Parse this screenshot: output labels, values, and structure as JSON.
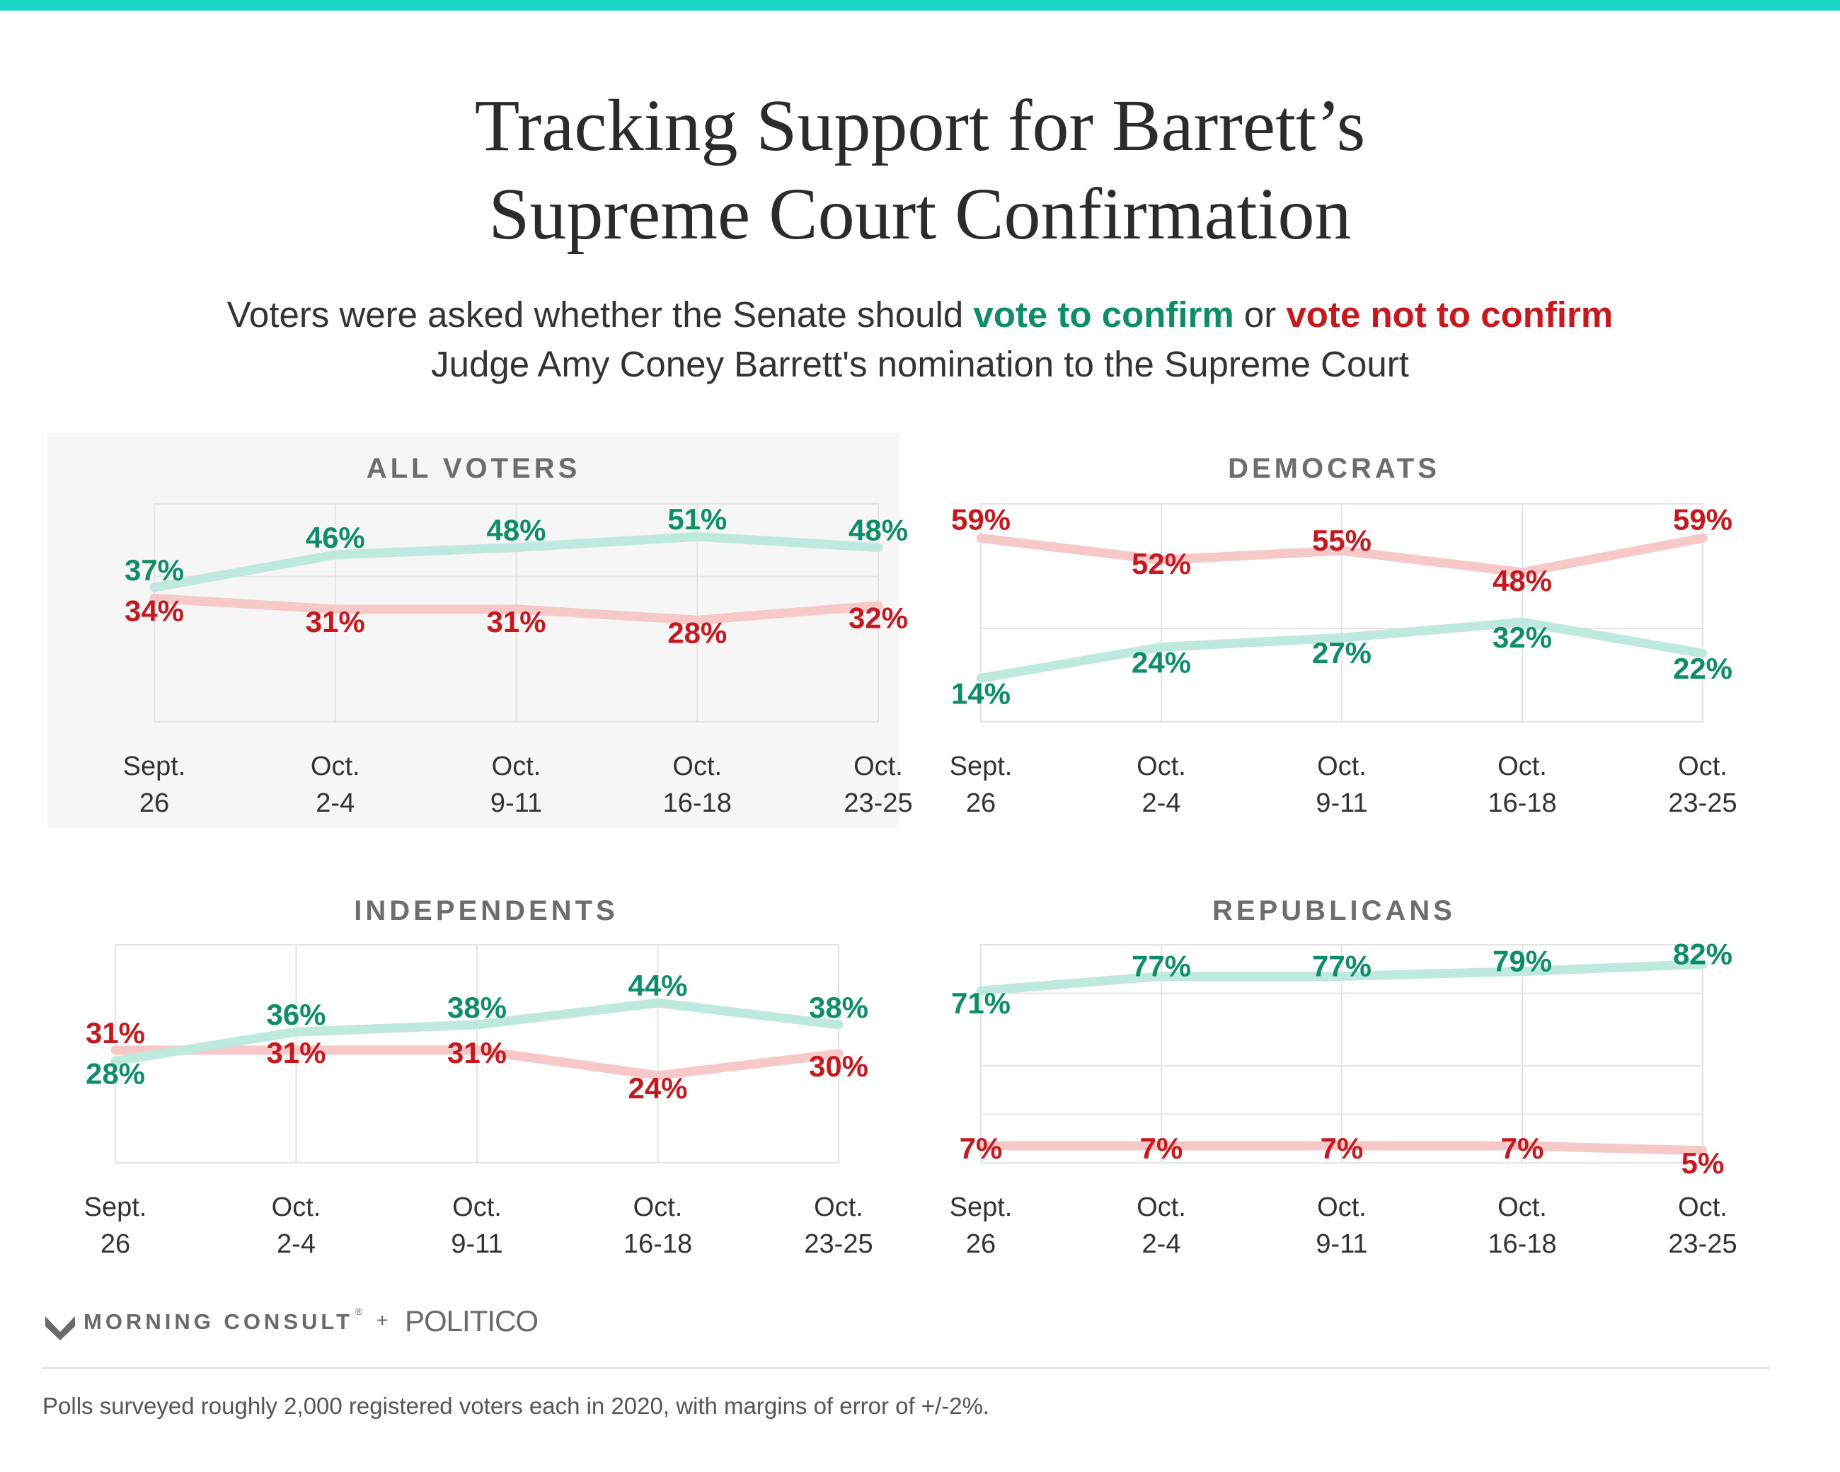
{
  "title_lines": [
    "Tracking Support for Barrett’s",
    "Supreme Court Confirmation"
  ],
  "subtitle": {
    "part1": "Voters were asked whether the Senate should ",
    "confirm": "vote to confirm",
    "part2": " or ",
    "not_confirm": "vote not to confirm",
    "part3": " Judge Amy Coney Barrett's nomination to the Supreme Court"
  },
  "colors": {
    "confirm_text": "#0f8d6a",
    "confirm_line": "#bfe9df",
    "not_confirm_text": "#c41a1f",
    "not_confirm_line": "#f6c8c8",
    "top_bar": "#1ed4c5",
    "highlight_panel_bg": "#f6f6f6"
  },
  "x_labels": [
    [
      "Sept.",
      "26"
    ],
    [
      "Oct.",
      "2-4"
    ],
    [
      "Oct.",
      "9-11"
    ],
    [
      "Oct.",
      "16-18"
    ],
    [
      "Oct.",
      "23-25"
    ]
  ],
  "chart_data": [
    {
      "type": "line",
      "title": "ALL VOTERS",
      "categories": [
        "Sept. 26",
        "Oct. 2-4",
        "Oct. 9-11",
        "Oct. 16-18",
        "Oct. 23-25"
      ],
      "series": [
        {
          "key": "confirm",
          "values": [
            37,
            46,
            48,
            51,
            48
          ]
        },
        {
          "key": "not_confirm",
          "values": [
            34,
            31,
            31,
            28,
            32
          ]
        }
      ],
      "grid": true
    },
    {
      "type": "line",
      "title": "DEMOCRATS",
      "categories": [
        "Sept. 26",
        "Oct. 2-4",
        "Oct. 9-11",
        "Oct. 16-18",
        "Oct. 23-25"
      ],
      "series": [
        {
          "key": "confirm",
          "values": [
            14,
            24,
            27,
            32,
            22
          ]
        },
        {
          "key": "not_confirm",
          "values": [
            59,
            52,
            55,
            48,
            59
          ]
        }
      ],
      "grid": true
    },
    {
      "type": "line",
      "title": "INDEPENDENTS",
      "categories": [
        "Sept. 26",
        "Oct. 2-4",
        "Oct. 9-11",
        "Oct. 16-18",
        "Oct. 23-25"
      ],
      "series": [
        {
          "key": "confirm",
          "values": [
            28,
            36,
            38,
            44,
            38
          ]
        },
        {
          "key": "not_confirm",
          "values": [
            31,
            31,
            31,
            24,
            30
          ]
        }
      ],
      "grid": true
    },
    {
      "type": "line",
      "title": "REPUBLICANS",
      "categories": [
        "Sept. 26",
        "Oct. 2-4",
        "Oct. 9-11",
        "Oct. 16-18",
        "Oct. 23-25"
      ],
      "series": [
        {
          "key": "confirm",
          "values": [
            71,
            77,
            77,
            79,
            82
          ]
        },
        {
          "key": "not_confirm",
          "values": [
            7,
            7,
            7,
            7,
            5
          ]
        }
      ],
      "grid": true
    }
  ],
  "logo": {
    "morning_consult": "MORNING CONSULT",
    "tm": "®",
    "plus": "+",
    "politico": "POLITICO"
  },
  "footnote": "Polls surveyed roughly 2,000 registered voters each in 2020, with margins of error of +/-2%."
}
